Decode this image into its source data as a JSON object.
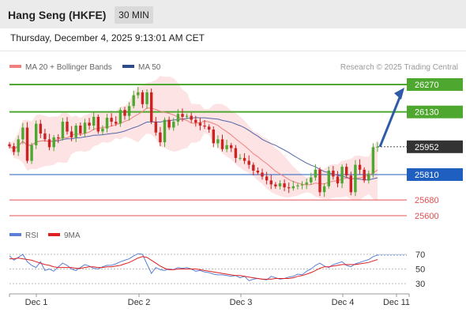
{
  "header": {
    "title": "Hang Seng (HKFE)",
    "timeframe": "30 MIN"
  },
  "datetime": "Thursday, December 4, 2025 9:13:01 AM CET",
  "legend": {
    "ma20_label": "MA 20 + Bollinger Bands",
    "ma50_label": "MA 50",
    "rsi_label": "RSI",
    "ma9_label": "9MA",
    "copyright": "Research © 2025 Trading Central"
  },
  "colors": {
    "ma20": "#f08080",
    "bollinger_fill": "#fde3e3",
    "ma50": "#5466a8",
    "resistance": "#4ea72e",
    "pivot": "#1f5fbf",
    "support": "#e05050",
    "current": "#333333",
    "arrow": "#2e5aa8",
    "rsi": "#5b7fd6",
    "rsi_ma": "#e02020",
    "candle_up": "#4ea72e",
    "candle_down": "#cc2222"
  },
  "chart_data": {
    "type": "candlestick",
    "title": "Hang Seng (HKFE)",
    "interval": "30 MIN",
    "x_tick_labels": [
      "Dec 1",
      "Dec 2",
      "Dec 3",
      "Dec 4",
      "Dec 11"
    ],
    "ylim": [
      25560,
      26300
    ],
    "levels": [
      {
        "value": 26270,
        "label": "26270",
        "role": "resistance"
      },
      {
        "value": 26130,
        "label": "26130",
        "role": "resistance"
      },
      {
        "value": 25952,
        "label": "25952",
        "role": "current"
      },
      {
        "value": 25810,
        "label": "25810",
        "role": "pivot"
      },
      {
        "value": 25680,
        "label": "25680",
        "role": "support"
      },
      {
        "value": 25600,
        "label": "25600",
        "role": "support"
      }
    ],
    "arrow": {
      "from_value": 25952,
      "to_value": 26270,
      "direction": "up"
    },
    "close_path": [
      25955,
      25925,
      25990,
      26050,
      25880,
      25960,
      26070,
      26020,
      25990,
      25950,
      26000,
      25995,
      26080,
      26030,
      26000,
      26060,
      26020,
      26075,
      26060,
      26105,
      26030,
      26045,
      26100,
      26080,
      26070,
      26140,
      26110,
      26160,
      26215,
      26230,
      26170,
      26230,
      26080,
      26025,
      25975,
      26090,
      26050,
      26080,
      26120,
      26105,
      26110,
      26090,
      26075,
      26060,
      26055,
      26040,
      25970,
      25990,
      25940,
      25960,
      25945,
      25895,
      25895,
      25880,
      25860,
      25830,
      25820,
      25800,
      25780,
      25760,
      25750,
      25765,
      25745,
      25740,
      25750,
      25755,
      25760,
      25770,
      25795,
      25835,
      25720,
      25750,
      25830,
      25800,
      25765,
      25850,
      25805,
      25720,
      25860,
      25835,
      25780,
      25815,
      25950,
      25952
    ],
    "rsi": {
      "ylim": [
        20,
        80
      ],
      "levels": [
        70,
        50,
        30
      ],
      "rsi_values": [
        68,
        62,
        66,
        70,
        60,
        55,
        52,
        60,
        48,
        50,
        47,
        53,
        58,
        55,
        50,
        48,
        52,
        56,
        54,
        51,
        50,
        53,
        55,
        55,
        57,
        60,
        62,
        64,
        68,
        71,
        70,
        57,
        44,
        52,
        49,
        48,
        50,
        49,
        52,
        51,
        52,
        50,
        47,
        48,
        46,
        45,
        43,
        42,
        42,
        41,
        40,
        41,
        38,
        40,
        34,
        36,
        37,
        36,
        35,
        40,
        38,
        36,
        37,
        39,
        40,
        43,
        42,
        47,
        50,
        55,
        58,
        54,
        52,
        56,
        58,
        60,
        55,
        53,
        57,
        59,
        61,
        63,
        67,
        69
      ],
      "ma9_values": [
        64,
        64,
        65,
        64,
        63,
        62,
        60,
        58,
        56,
        55,
        53,
        52,
        52,
        52,
        52,
        51,
        51,
        52,
        53,
        53,
        52,
        52,
        53,
        53,
        54,
        55,
        57,
        59,
        62,
        65,
        67,
        66,
        62,
        58,
        54,
        51,
        49,
        49,
        50,
        50,
        50,
        50,
        50,
        49,
        48,
        47,
        46,
        45,
        44,
        43,
        42,
        41,
        41,
        40,
        39,
        38,
        37,
        36,
        36,
        36,
        37,
        37,
        37,
        37,
        38,
        40,
        41,
        43,
        45,
        48,
        51,
        53,
        53,
        54,
        55,
        56,
        56,
        56,
        56,
        57,
        58,
        59,
        61,
        63
      ]
    }
  }
}
